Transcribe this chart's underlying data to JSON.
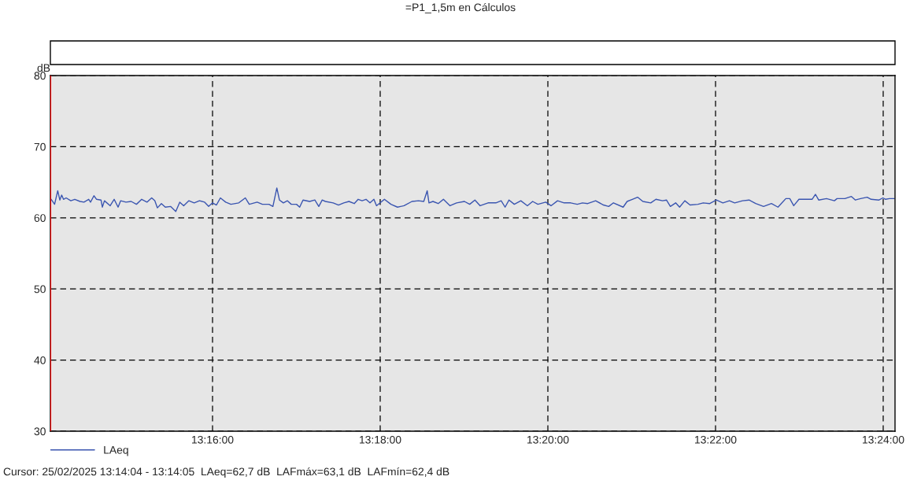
{
  "chart_data": {
    "type": "line",
    "title": "=P1_1,5m en Cálculos",
    "ylabel": "dB",
    "series": [
      {
        "name": "LAeq",
        "color": "#3a55b0",
        "x": [
          13.23459,
          13.23527,
          13.23589,
          13.23631,
          13.23667,
          13.23704,
          13.23756,
          13.2385,
          13.23928,
          13.24032,
          13.24111,
          13.24205,
          13.24241,
          13.24309,
          13.24361,
          13.2445,
          13.24476,
          13.24518,
          13.24632,
          13.24711,
          13.24789,
          13.24841,
          13.24945,
          13.2505,
          13.25154,
          13.25258,
          13.25363,
          13.25457,
          13.25519,
          13.25571,
          13.2565,
          13.25728,
          13.25832,
          13.25936,
          13.26015,
          13.26093,
          13.26197,
          13.26302,
          13.26406,
          13.2651,
          13.26589,
          13.26667,
          13.26745,
          13.26823,
          13.26928,
          13.27032,
          13.27188,
          13.27319,
          13.27397,
          13.27554,
          13.27658,
          13.27788,
          13.27867,
          13.27945,
          13.27997,
          13.28075,
          13.28153,
          13.28232,
          13.28336,
          13.28399,
          13.28466,
          13.28597,
          13.28701,
          13.28779,
          13.28847,
          13.2891,
          13.29066,
          13.29171,
          13.29275,
          13.29379,
          13.29484,
          13.29562,
          13.2964,
          13.29718,
          13.29797,
          13.29875,
          13.29927,
          13.30084,
          13.30214,
          13.30344,
          13.30475,
          13.30631,
          13.30762,
          13.30866,
          13.30934,
          13.3097,
          13.31049,
          13.31153,
          13.31257,
          13.31388,
          13.31518,
          13.31675,
          13.31779,
          13.31883,
          13.31987,
          13.32144,
          13.323,
          13.32405,
          13.32483,
          13.32561,
          13.32666,
          13.32796,
          13.32926,
          13.33031,
          13.33135,
          13.33291,
          13.33396,
          13.33526,
          13.33657,
          13.33787,
          13.33918,
          13.34022,
          13.34126,
          13.34283,
          13.34439,
          13.34543,
          13.34637,
          13.3483,
          13.34909,
          13.35013,
          13.35117,
          13.35222,
          13.35378,
          13.35482,
          13.35613,
          13.35691,
          13.35769,
          13.35874,
          13.35952,
          13.36056,
          13.3616,
          13.36317,
          13.36421,
          13.36552,
          13.36682,
          13.36813,
          13.36943,
          13.37047,
          13.37204,
          13.37334,
          13.37465,
          13.37621,
          13.37778,
          13.37908,
          13.38064,
          13.38143,
          13.38221,
          13.38325,
          13.38456,
          13.38586,
          13.38654,
          13.38717,
          13.38873,
          13.3903,
          13.39082,
          13.39238,
          13.39368,
          13.39447,
          13.39551,
          13.39681,
          13.3976,
          13.39916,
          13.39995,
          13.40047,
          13.40125,
          13.40219
        ],
        "values": [
          62.6,
          61.9,
          63.8,
          62.5,
          63.2,
          62.6,
          62.8,
          62.4,
          62.6,
          62.3,
          62.2,
          62.6,
          62.2,
          63.1,
          62.6,
          62.5,
          61.5,
          62.4,
          61.7,
          62.6,
          61.5,
          62.4,
          62.2,
          62.3,
          61.9,
          62.6,
          62.2,
          62.8,
          62.4,
          61.4,
          62.0,
          61.5,
          61.6,
          60.9,
          62.2,
          61.7,
          62.4,
          62.1,
          62.4,
          62.2,
          61.6,
          62.1,
          61.8,
          62.8,
          62.2,
          61.9,
          62.1,
          62.8,
          61.9,
          62.2,
          61.9,
          61.9,
          61.6,
          64.2,
          62.5,
          62.1,
          62.4,
          61.9,
          61.9,
          61.5,
          62.5,
          62.3,
          62.5,
          61.6,
          62.5,
          62.3,
          62.1,
          61.8,
          62.1,
          62.3,
          62.0,
          62.6,
          62.4,
          62.6,
          62.1,
          62.6,
          61.7,
          62.6,
          61.9,
          61.5,
          61.7,
          62.3,
          62.4,
          62.3,
          63.8,
          62.1,
          62.3,
          62.0,
          62.6,
          61.7,
          62.1,
          62.3,
          61.9,
          62.5,
          61.7,
          62.1,
          62.1,
          62.4,
          61.5,
          62.5,
          61.9,
          62.4,
          61.7,
          62.3,
          61.9,
          62.2,
          61.7,
          62.4,
          62.1,
          62.1,
          61.9,
          62.1,
          62.0,
          62.4,
          61.8,
          61.6,
          62.1,
          61.5,
          62.3,
          62.6,
          62.9,
          62.3,
          62.1,
          62.6,
          62.4,
          62.5,
          61.6,
          62.1,
          61.5,
          62.4,
          61.8,
          61.9,
          62.1,
          62.0,
          62.5,
          62.1,
          62.4,
          62.1,
          62.4,
          62.5,
          62.0,
          61.6,
          62.0,
          61.5,
          62.7,
          62.7,
          61.7,
          62.6,
          62.6,
          62.6,
          63.3,
          62.5,
          62.7,
          62.4,
          62.7,
          62.7,
          63.0,
          62.5,
          62.7,
          62.9,
          62.6,
          62.5,
          62.8,
          62.6,
          62.7,
          62.7
        ]
      }
    ],
    "xlim": [
      13.23443,
      13.40235
    ],
    "ylim": [
      30,
      80
    ],
    "xticks": [
      {
        "value": 13.266667,
        "label": "13:16:00"
      },
      {
        "value": 13.3,
        "label": "13:18:00"
      },
      {
        "value": 13.333333,
        "label": "13:20:00"
      },
      {
        "value": 13.366667,
        "label": "13:22:00"
      },
      {
        "value": 13.4,
        "label": "13:24:00"
      }
    ],
    "yticks": [
      30,
      40,
      50,
      60,
      70,
      80
    ],
    "grid": true,
    "legend": "bottom left",
    "line_style": "solid",
    "marker": "none",
    "ref_lines": [
      {
        "axis": "x",
        "value": 13.23443,
        "color": "#ff0000"
      }
    ],
    "annotations": [
      "Cursor: 25/02/2025 13:14:04 - 13:14:05  LAeq=62,7 dB  LAFmáx=63,1 dB  LAFmín=62,4 dB"
    ]
  }
}
